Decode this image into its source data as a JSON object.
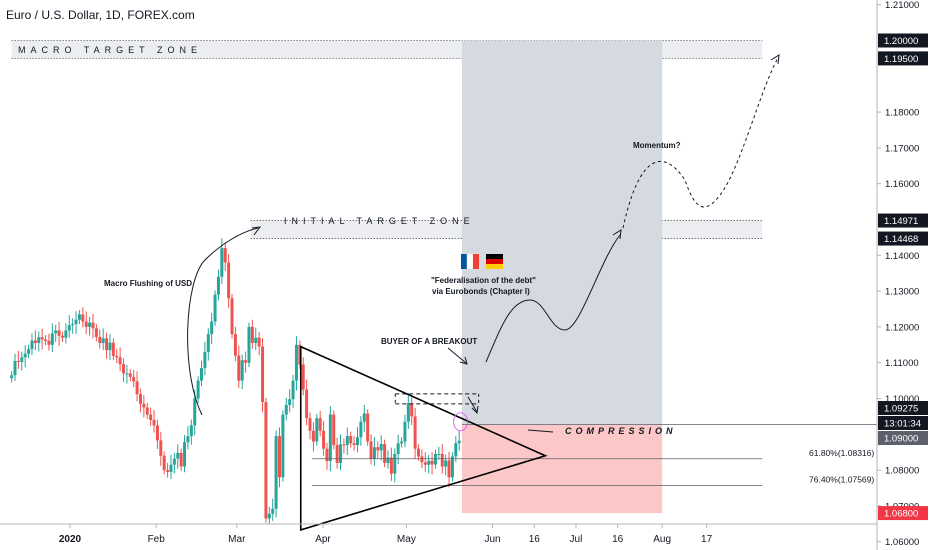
{
  "title": "Euro / U.S. Dollar, 1D, FOREX.com",
  "colors": {
    "up": "#26a69a",
    "down": "#ef5350",
    "target_zone_fill": "#e9ebee",
    "projection_fill": "#d5d9e0",
    "stop_fill": "#fbc7c7",
    "axis_text": "#131722",
    "price_badge_dark": "#131722",
    "price_badge_red": "#f23645",
    "price_badge_gray": "#5d606b"
  },
  "chart_data": {
    "type": "candlestick",
    "symbol": "EURUSD",
    "timeframe": "1D",
    "ylim": [
      1.055,
      1.215
    ],
    "price_ticks": [
      "1.21000",
      "1.20000",
      "1.19500",
      "1.18000",
      "1.17000",
      "1.16000",
      "1.15000",
      "1.14971",
      "1.14468",
      "1.14000",
      "1.13000",
      "1.12000",
      "1.11000",
      "1.10000",
      "1.09275",
      "1.09000",
      "1.08000",
      "1.07000",
      "1.06800",
      "1.06000"
    ],
    "price_tick_values": [
      1.21,
      1.2,
      1.195,
      1.18,
      1.17,
      1.16,
      1.15,
      1.14971,
      1.14468,
      1.14,
      1.13,
      1.12,
      1.11,
      1.1,
      1.09275,
      1.09,
      1.08,
      1.07,
      1.068,
      1.06
    ],
    "price_badges": [
      {
        "label": "1.20000",
        "value": 1.2,
        "style": "dark"
      },
      {
        "label": "1.19500",
        "value": 1.195,
        "style": "dark"
      },
      {
        "label": "1.14971",
        "value": 1.14971,
        "style": "dark"
      },
      {
        "label": "1.14468",
        "value": 1.14468,
        "style": "dark"
      },
      {
        "label": "1.09275",
        "value": 1.09275,
        "style": "dark"
      },
      {
        "label": "13:01:34",
        "value": 1.0902,
        "style": "dark"
      },
      {
        "label": "1.09000",
        "value": 1.0888,
        "style": "gray"
      },
      {
        "label": "1.06800",
        "value": 1.068,
        "style": "red"
      }
    ],
    "time_labels": [
      "2020",
      "Feb",
      "Mar",
      "Apr",
      "May",
      "Jun",
      "16",
      "Jul",
      "16",
      "Aug",
      "17"
    ],
    "time_label_days": [
      1,
      32,
      61,
      92,
      122,
      153,
      168,
      183,
      198,
      214,
      230
    ],
    "candles_first_day": -20,
    "candles_last_day": 141,
    "candle_closes": [
      1.1065,
      1.1105,
      1.1102,
      1.1115,
      1.1125,
      1.1138,
      1.1162,
      1.1155,
      1.1171,
      1.1165,
      1.1161,
      1.115,
      1.1182,
      1.119,
      1.1175,
      1.117,
      1.119,
      1.1205,
      1.1208,
      1.122,
      1.1235,
      1.1215,
      1.12,
      1.1212,
      1.1196,
      1.1172,
      1.1155,
      1.1168,
      1.1135,
      1.1156,
      1.1119,
      1.1115,
      1.1096,
      1.107,
      1.107,
      1.106,
      1.1048,
      1.1012,
      1.0985,
      1.0975,
      1.0955,
      1.094,
      1.0925,
      1.0883,
      1.084,
      1.08,
      1.0795,
      1.0815,
      1.0832,
      1.0848,
      1.081,
      1.0878,
      1.0895,
      1.0925,
      1.1,
      1.105,
      1.1085,
      1.113,
      1.118,
      1.1215,
      1.129,
      1.134,
      1.142,
      1.138,
      1.128,
      1.118,
      1.112,
      1.105,
      1.1107,
      1.11,
      1.12,
      1.1155,
      1.117,
      1.1145,
      1.099,
      1.0665,
      1.0678,
      1.0692,
      1.0895,
      1.078,
      1.0955,
      1.0982,
      1.0998,
      1.105,
      1.115,
      1.1095,
      1.1025,
      1.0945,
      1.091,
      1.088,
      1.0945,
      1.091,
      1.086,
      1.0825,
      1.0955,
      1.087,
      1.082,
      1.0872,
      1.087,
      1.0895,
      1.0875,
      1.087,
      1.0892,
      1.0935,
      1.0958,
      1.088,
      1.0832,
      1.0864,
      1.0855,
      1.0873,
      1.082,
      1.0835,
      1.079,
      1.0845,
      1.0875,
      1.088,
      1.0935,
      1.0987,
      1.095,
      1.086,
      1.0838,
      1.0822,
      1.0815,
      1.0826,
      1.0816,
      1.0845,
      1.0845,
      1.081,
      1.0827,
      1.078,
      1.0838,
      1.0875,
      1.0882
    ],
    "ranges": [
      {
        "name": "macro-target-zone",
        "from": 1.195,
        "to": 1.2,
        "start_day": -20,
        "end_day": 250
      },
      {
        "name": "initial-target-zone",
        "from": 1.14468,
        "to": 1.14971,
        "start_day": 66,
        "end_day": 250
      },
      {
        "name": "projection-box",
        "from": 1.0927,
        "to": 1.2,
        "start_day": 142,
        "end_day": 214
      },
      {
        "name": "stop-box",
        "from": 1.068,
        "to": 1.0927,
        "start_day": 142,
        "end_day": 214
      }
    ],
    "levels": [
      {
        "name": "fib-61",
        "value": 1.08316,
        "start_day": 88,
        "end_day": 250,
        "label": "61.80%(1.08316)"
      },
      {
        "name": "fib-76",
        "value": 1.07569,
        "start_day": 88,
        "end_day": 250,
        "label": "76.40%(1.07569)"
      },
      {
        "name": "breakout-box-top",
        "value": 1.1013,
        "start_day": 118,
        "end_day": 148
      },
      {
        "name": "breakout-box-bottom",
        "value": 1.0985,
        "start_day": 118,
        "end_day": 148
      }
    ],
    "triangle": [
      [
        84,
        1.0633
      ],
      [
        84,
        1.1145
      ],
      [
        172,
        1.084
      ]
    ],
    "annotations": {
      "macro_zone": "MACRO TARGET ZONE",
      "initial_zone": "INITIAL TARGET ZONE",
      "macro_flushing": "Macro Flushing of USD",
      "federalisation_line1": "\"Federalisation of the debt\"",
      "federalisation_line2": "via Eurobonds (Chapter I)",
      "buyer": "BUYER OF A BREAKOUT",
      "momentum": "Momentum?",
      "compression": "COMPRESSION"
    }
  }
}
